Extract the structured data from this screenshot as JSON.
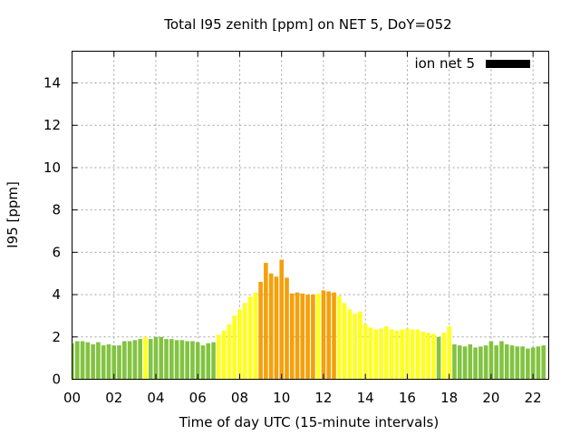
{
  "chart_data": {
    "type": "bar",
    "title": "Total I95 zenith [ppm] on NET 5, DoY=052",
    "xlabel": "Time of day UTC (15-minute intervals)",
    "ylabel": "I95 [ppm]",
    "xlim": [
      0,
      22.75
    ],
    "ylim": [
      0,
      15.5
    ],
    "xticks": [
      0,
      2,
      4,
      6,
      8,
      10,
      12,
      14,
      16,
      18,
      20,
      22
    ],
    "xtick_labels": [
      "00",
      "02",
      "04",
      "06",
      "08",
      "10",
      "12",
      "14",
      "16",
      "18",
      "20",
      "22"
    ],
    "yticks": [
      0,
      2,
      4,
      6,
      8,
      10,
      12,
      14
    ],
    "bar_interval_hours": 0.25,
    "grid": true,
    "legend_position": "top-right",
    "legend": [
      {
        "label": "ion net 5",
        "color": "#000000"
      }
    ],
    "colors": {
      "green": "#82c341",
      "yellow": "#ffff1e",
      "orange": "#f5a00a"
    },
    "series": [
      {
        "values": [
          1.7,
          1.8,
          1.8,
          1.75,
          1.65,
          1.75,
          1.6,
          1.65,
          1.6,
          1.6,
          1.8,
          1.8,
          1.85,
          1.9,
          2.0,
          1.9,
          2.0,
          2.0,
          1.9,
          1.9,
          1.85,
          1.85,
          1.8,
          1.8,
          1.75,
          1.6,
          1.7,
          1.75,
          2.1,
          2.3,
          2.6,
          3.0,
          3.3,
          3.6,
          3.9,
          4.1,
          4.6,
          5.5,
          5.0,
          4.85,
          5.65,
          4.8,
          4.05,
          4.1,
          4.05,
          4.0,
          4.0,
          4.05,
          4.2,
          4.15,
          4.1,
          3.95,
          3.6,
          3.3,
          3.1,
          3.2,
          2.6,
          2.45,
          2.35,
          2.4,
          2.5,
          2.35,
          2.3,
          2.35,
          2.4,
          2.35,
          2.35,
          2.25,
          2.2,
          2.15,
          2.0,
          2.2,
          2.5,
          1.65,
          1.6,
          1.55,
          1.65,
          1.5,
          1.55,
          1.6,
          1.8,
          1.6,
          1.8,
          1.65,
          1.6,
          1.55,
          1.55,
          1.45,
          1.5,
          1.55,
          1.6
        ],
        "colors": [
          "green",
          "green",
          "green",
          "green",
          "green",
          "green",
          "green",
          "green",
          "green",
          "green",
          "green",
          "green",
          "green",
          "green",
          "yellow",
          "green",
          "green",
          "green",
          "green",
          "green",
          "green",
          "green",
          "green",
          "green",
          "green",
          "green",
          "green",
          "green",
          "yellow",
          "yellow",
          "yellow",
          "yellow",
          "yellow",
          "yellow",
          "yellow",
          "yellow",
          "orange",
          "orange",
          "orange",
          "orange",
          "orange",
          "orange",
          "orange",
          "orange",
          "orange",
          "orange",
          "orange",
          "yellow",
          "orange",
          "orange",
          "orange",
          "yellow",
          "yellow",
          "yellow",
          "yellow",
          "yellow",
          "yellow",
          "yellow",
          "yellow",
          "yellow",
          "yellow",
          "yellow",
          "yellow",
          "yellow",
          "yellow",
          "yellow",
          "yellow",
          "yellow",
          "yellow",
          "yellow",
          "green",
          "yellow",
          "yellow",
          "green",
          "green",
          "green",
          "green",
          "green",
          "green",
          "green",
          "green",
          "green",
          "green",
          "green",
          "green",
          "green",
          "green",
          "green",
          "green",
          "green",
          "green"
        ]
      }
    ]
  }
}
